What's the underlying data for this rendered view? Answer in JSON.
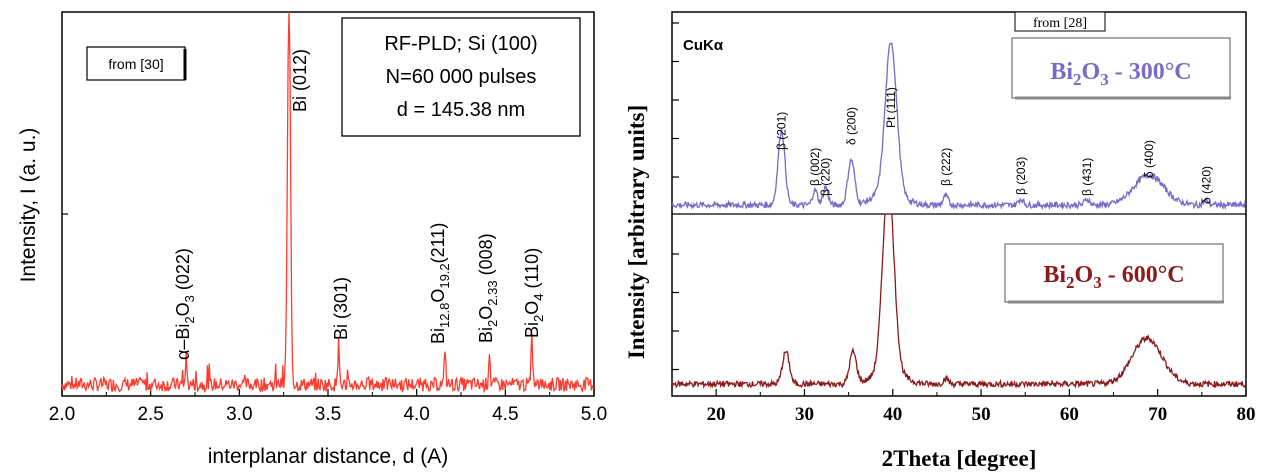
{
  "chart_data": [
    {
      "type": "line",
      "xlabel": "interplanar distance, d (A)",
      "ylabel": "Intensity, I (a. u.)",
      "xlim": [
        2.0,
        5.0
      ],
      "xticks": [
        "2.0",
        "2.5",
        "3.0",
        "3.5",
        "4.0",
        "4.5",
        "5.0"
      ],
      "source_note": "from [30]",
      "info_box": [
        "RF-PLD; Si (100)",
        "N=60 000 pulses",
        "d = 145.38 nm"
      ],
      "series_color": "#ff3b2f",
      "baseline": 0.04,
      "peaks": [
        {
          "label": "α–Bi2O3 (022)",
          "x": 2.7,
          "y": 0.07
        },
        {
          "label": "Bi (012)",
          "x": 3.28,
          "y": 1.0
        },
        {
          "label": "Bi (301)",
          "x": 3.56,
          "y": 0.11
        },
        {
          "label": "Bi12.8O19.2(211)",
          "x": 4.16,
          "y": 0.1
        },
        {
          "label": "Bi2O2.33 (008)",
          "x": 4.41,
          "y": 0.09
        },
        {
          "label": "Bi2O4 (110)",
          "x": 4.65,
          "y": 0.13
        }
      ],
      "legend_position": "top-right"
    },
    {
      "type": "line",
      "xlabel": "2Theta [degree]",
      "ylabel": "Intensity [arbitrary units]",
      "xlim": [
        15,
        80
      ],
      "xticks": [
        "20",
        "30",
        "40",
        "50",
        "60",
        "70",
        "80"
      ],
      "source_note": "from [28]",
      "radiation": "CuKα",
      "series": [
        {
          "name": "Bi2O3 - 300°C",
          "color": "#7b68c8",
          "peaks": [
            {
              "label": "β (201)",
              "x": 27.4,
              "h": 0.5
            },
            {
              "label": "β (002)",
              "x": 31.2,
              "h": 0.1
            },
            {
              "label": "β (220)",
              "x": 32.4,
              "h": 0.12
            },
            {
              "label": "δ (200)",
              "x": 35.3,
              "h": 0.3
            },
            {
              "label": "Pt (111)",
              "x": 39.8,
              "h": 1.0
            },
            {
              "label": "β (222)",
              "x": 46.0,
              "h": 0.06
            },
            {
              "label": "β (203)",
              "x": 54.5,
              "h": 0.04
            },
            {
              "label": "β (431)",
              "x": 62.0,
              "h": 0.04
            },
            {
              "label": "δ (400)",
              "x": 69.0,
              "h": 0.2
            },
            {
              "label": "δ (420)",
              "x": 75.5,
              "h": 0.03
            }
          ]
        },
        {
          "name": "Bi2O3 - 600°C",
          "color": "#8b1a1a",
          "peaks": [
            {
              "x": 27.9,
              "h": 0.17
            },
            {
              "x": 35.5,
              "h": 0.17
            },
            {
              "x": 39.5,
              "h": 1.0
            },
            {
              "x": 46.0,
              "h": 0.03
            },
            {
              "x": 68.8,
              "h": 0.24
            }
          ]
        }
      ]
    }
  ]
}
